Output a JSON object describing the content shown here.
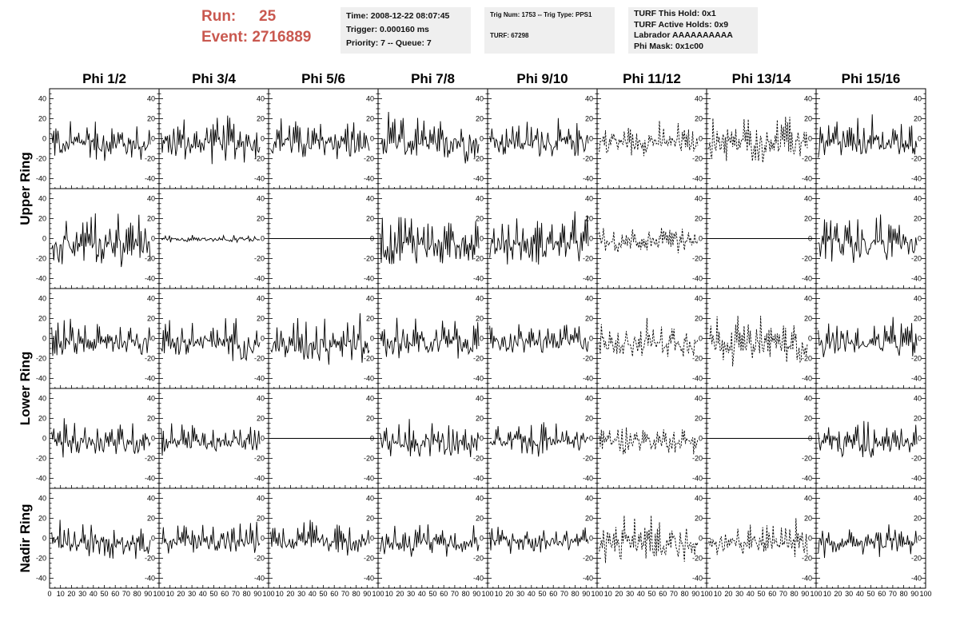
{
  "header": {
    "run_label": "Run:",
    "run_value": "25",
    "event_label": "Event:",
    "event_value": "2716889",
    "time": "Time: 2008-12-22 08:07:45",
    "trigger": "Trigger: 0.000160 ms",
    "priority": "Priority: 7 -- Queue: 7",
    "trig_num": "Trig Num: 1753 -- Trig Type: PPS1",
    "turf": "TURF: 67298",
    "turf_this_hold": "TURF This Hold: 0x1",
    "turf_active_holds": "TURF Active Holds: 0x9",
    "labrador": "Labrador AAAAAAAAAA",
    "phi_mask": "Phi Mask: 0x1c00"
  },
  "chart_data": {
    "type": "line",
    "columns": [
      "Phi 1/2",
      "Phi 3/4",
      "Phi 5/6",
      "Phi 7/8",
      "Phi 9/10",
      "Phi 11/12",
      "Phi 13/14",
      "Phi 15/16"
    ],
    "rows": [
      "Upper Ring",
      "Lower Ring",
      "Nadir Ring"
    ],
    "ylim": [
      -50,
      50
    ],
    "y_ticks": [
      -40,
      -20,
      0,
      20,
      40
    ],
    "xlim": [
      0,
      100
    ],
    "x_tick_labels": [
      "0",
      "10",
      "20",
      "30",
      "40",
      "50",
      "60",
      "70",
      "80",
      "90",
      "100"
    ],
    "samples": 96,
    "grid": false,
    "panels": [
      [
        {
          "style": "solid",
          "amplitude": 20
        },
        {
          "style": "solid",
          "amplitude": 20
        },
        {
          "style": "solid",
          "amplitude": 20
        },
        {
          "style": "solid",
          "amplitude": 20
        },
        {
          "style": "solid",
          "amplitude": 16
        },
        {
          "style": "dashed",
          "amplitude": 14
        },
        {
          "style": "dashed",
          "amplitude": 20
        },
        {
          "style": "solid",
          "amplitude": 20
        }
      ],
      [
        {
          "style": "solid",
          "amplitude": 24
        },
        {
          "style": "solid",
          "amplitude": 3
        },
        {
          "style": "flat",
          "amplitude": 0
        },
        {
          "style": "solid",
          "amplitude": 24
        },
        {
          "style": "solid",
          "amplitude": 22
        },
        {
          "style": "dashed",
          "amplitude": 12
        },
        {
          "style": "flat",
          "amplitude": 0
        },
        {
          "style": "solid",
          "amplitude": 20
        }
      ],
      [
        {
          "style": "solid",
          "amplitude": 16
        },
        {
          "style": "solid",
          "amplitude": 18
        },
        {
          "style": "solid",
          "amplitude": 22
        },
        {
          "style": "solid",
          "amplitude": 18
        },
        {
          "style": "solid",
          "amplitude": 14
        },
        {
          "style": "dashed",
          "amplitude": 16
        },
        {
          "style": "dashed",
          "amplitude": 22
        },
        {
          "style": "solid",
          "amplitude": 16
        }
      ],
      [
        {
          "style": "solid",
          "amplitude": 16
        },
        {
          "style": "solid",
          "amplitude": 14
        },
        {
          "style": "flat",
          "amplitude": 0
        },
        {
          "style": "solid",
          "amplitude": 16
        },
        {
          "style": "solid",
          "amplitude": 14
        },
        {
          "style": "dashed",
          "amplitude": 12
        },
        {
          "style": "flat",
          "amplitude": 0
        },
        {
          "style": "solid",
          "amplitude": 18
        }
      ],
      [
        {
          "style": "solid",
          "amplitude": 16
        },
        {
          "style": "solid",
          "amplitude": 14
        },
        {
          "style": "solid",
          "amplitude": 14
        },
        {
          "style": "solid",
          "amplitude": 14
        },
        {
          "style": "solid",
          "amplitude": 12
        },
        {
          "style": "dashed",
          "amplitude": 20
        },
        {
          "style": "dashed",
          "amplitude": 16
        },
        {
          "style": "solid",
          "amplitude": 16
        }
      ]
    ]
  }
}
